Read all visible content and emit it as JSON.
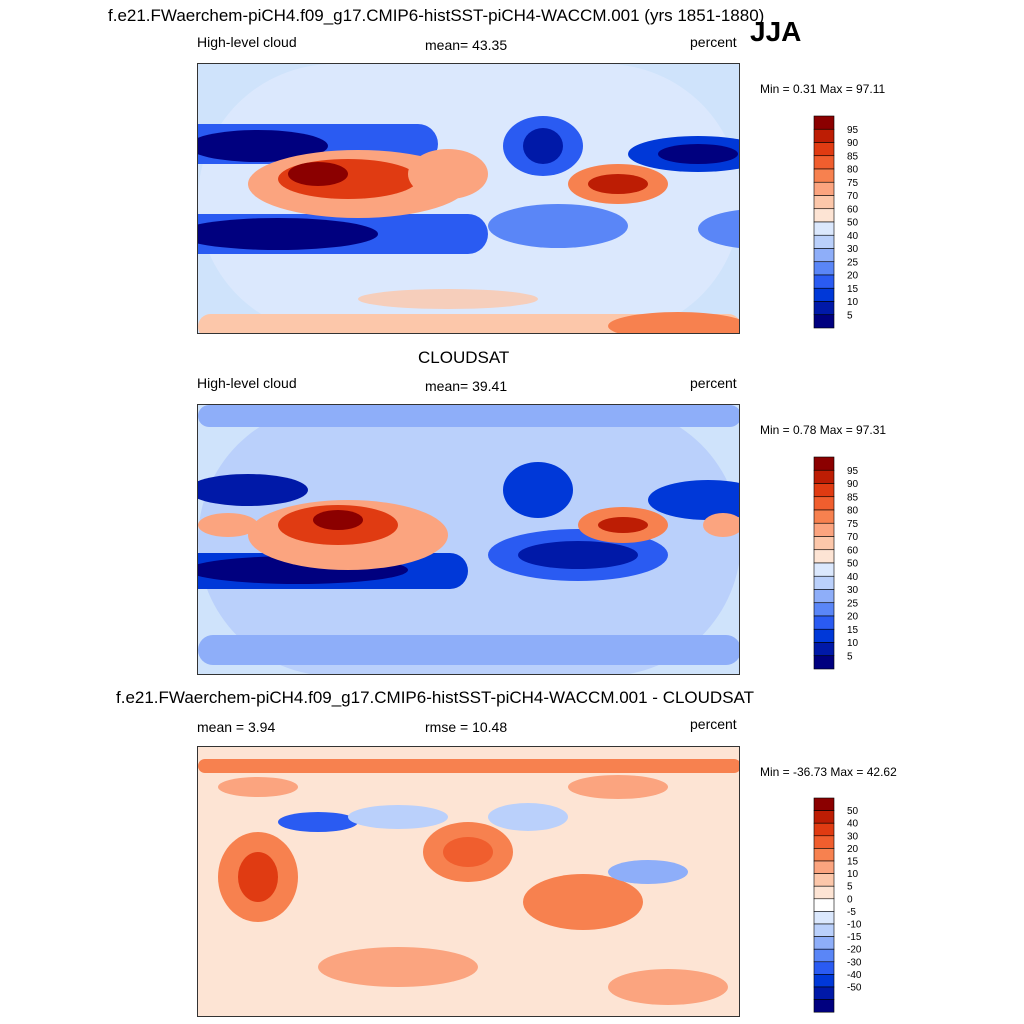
{
  "season": "JJA",
  "colors": {
    "model_scale": [
      "#00007f",
      "#0019a8",
      "#0038d8",
      "#2a5bf2",
      "#5a86f7",
      "#8eaef9",
      "#bad0fb",
      "#dbe8fd",
      "#fde4d4",
      "#fcc7aa",
      "#fba47f",
      "#f7814f",
      "#f05e2e",
      "#e03b12",
      "#bd1d04",
      "#8b0000"
    ],
    "diff_scale": [
      "#00007f",
      "#0019a8",
      "#0038d8",
      "#2a5bf2",
      "#5a86f7",
      "#8eaef9",
      "#bad0fb",
      "#dbe8fd",
      "#ffffff",
      "#fde4d4",
      "#fcc7aa",
      "#fba47f",
      "#f7814f",
      "#f05e2e",
      "#e03b12",
      "#bd1d04",
      "#8b0000"
    ]
  },
  "panels": [
    {
      "id": "model",
      "title": "f.e21.FWaerchem-piCH4.f09_g17.CMIP6-histSST-piCH4-WACCM.001 (yrs 1851-1880)",
      "left_label": "High-level cloud",
      "center_label": "mean=  43.35",
      "right_label": "percent",
      "minmax": "Min =   0.31 Max =  97.11"
    },
    {
      "id": "obs",
      "title": "CLOUDSAT",
      "left_label": "High-level cloud",
      "center_label": "mean=  39.41",
      "right_label": "percent",
      "minmax": "Min =   0.78 Max =  97.31"
    },
    {
      "id": "diff",
      "title": "f.e21.FWaerchem-piCH4.f09_g17.CMIP6-histSST-piCH4-WACCM.001 - CLOUDSAT",
      "left_label": "mean =   3.94",
      "center_label": "rmse =  10.48",
      "right_label": "percent",
      "minmax": "Min = -36.73 Max =  42.62"
    }
  ],
  "chart_data": [
    {
      "type": "heatmap",
      "title": "f.e21.FWaerchem-piCH4.f09_g17.CMIP6-histSST-piCH4-WACCM.001 (yrs 1851-1880)",
      "variable": "High-level cloud",
      "units": "percent",
      "mean": 43.35,
      "min": 0.31,
      "max": 97.11,
      "levels": [
        5,
        10,
        15,
        20,
        25,
        30,
        40,
        50,
        60,
        70,
        75,
        80,
        85,
        90,
        95
      ],
      "level_labels": [
        "95",
        "90",
        "85",
        "80",
        "75",
        "70",
        "60",
        "50",
        "40",
        "30",
        "25",
        "20",
        "15",
        "10",
        "5"
      ]
    },
    {
      "type": "heatmap",
      "title": "CLOUDSAT",
      "variable": "High-level cloud",
      "units": "percent",
      "mean": 39.41,
      "min": 0.78,
      "max": 97.31,
      "levels": [
        5,
        10,
        15,
        20,
        25,
        30,
        40,
        50,
        60,
        70,
        75,
        80,
        85,
        90,
        95
      ],
      "level_labels": [
        "95",
        "90",
        "85",
        "80",
        "75",
        "70",
        "60",
        "50",
        "40",
        "30",
        "25",
        "20",
        "15",
        "10",
        "5"
      ]
    },
    {
      "type": "heatmap",
      "title": "f.e21.FWaerchem-piCH4.f09_g17.CMIP6-histSST-piCH4-WACCM.001 - CLOUDSAT",
      "units": "percent",
      "mean": 3.94,
      "rmse": 10.48,
      "min": -36.73,
      "max": 42.62,
      "levels": [
        -50,
        -40,
        -30,
        -20,
        -15,
        -10,
        -5,
        0,
        5,
        10,
        15,
        20,
        30,
        40,
        50
      ],
      "level_labels": [
        "50",
        "40",
        "30",
        "20",
        "15",
        "10",
        "5",
        "0",
        "-5",
        "-10",
        "-15",
        "-20",
        "-30",
        "-40",
        "-50"
      ]
    }
  ]
}
